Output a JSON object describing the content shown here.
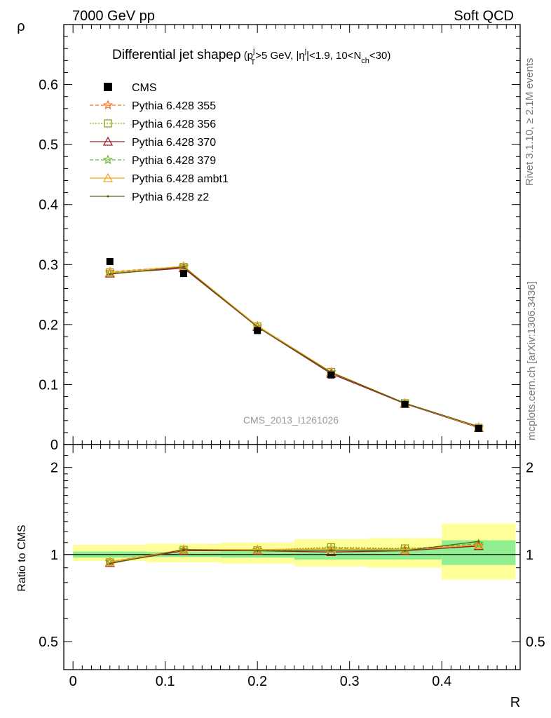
{
  "header": {
    "left": "7000 GeV pp",
    "right": "Soft QCD"
  },
  "side_labels": {
    "rivet": "Rivet 3.1.10, ≥ 2.1M events",
    "mcplots": "mcplots.cern.ch [arXiv:1306.3436]"
  },
  "chart_data": [
    {
      "type": "line",
      "panel": "main",
      "title": "Differential jet shapeρ (p_T^j>5 GeV, |η^j|<1.9, 10<N_ch<30)",
      "title_parts": {
        "main": "Differential jet shape",
        "rho": "ρ",
        "open": "(p",
        "pt_sup": "j",
        "pt_sub": "T",
        "mid": ">5 GeV, |η",
        "eta_sup": "j",
        "mid2": "|<1.9, 10<N",
        "nch_sub": "ch",
        "close": "<30)"
      },
      "ylabel": "ρ",
      "watermark": "CMS_2013_I1261026",
      "xlim": [
        -0.01,
        0.485
      ],
      "ylim": [
        0,
        0.7
      ],
      "yticks": [
        0,
        0.1,
        0.2,
        0.3,
        0.4,
        0.5,
        0.6
      ],
      "ytick_labels": [
        "0",
        "0.1",
        "0.2",
        "0.3",
        "0.4",
        "0.5",
        "0.6"
      ],
      "legend_position": "top-left",
      "x": [
        0.04,
        0.12,
        0.2,
        0.28,
        0.36,
        0.44
      ],
      "data": {
        "name": "CMS",
        "values": [
          0.305,
          0.285,
          0.19,
          0.116,
          0.067,
          0.027
        ]
      },
      "series": [
        {
          "name": "Pythia 6.428 355",
          "color": "#ff6d1f",
          "marker": "star",
          "dash": "5,3",
          "values": [
            0.288,
            0.297,
            0.197,
            0.12,
            0.069,
            0.028
          ]
        },
        {
          "name": "Pythia 6.428 356",
          "color": "#8ea21c",
          "marker": "square-open",
          "dash": "2,2",
          "values": [
            0.287,
            0.296,
            0.197,
            0.121,
            0.069,
            0.028
          ]
        },
        {
          "name": "Pythia 6.428 370",
          "color": "#9b1c28",
          "marker": "triangle-open",
          "dash": "",
          "values": [
            0.285,
            0.294,
            0.196,
            0.118,
            0.068,
            0.028
          ]
        },
        {
          "name": "Pythia 6.428 379",
          "color": "#6cb62b",
          "marker": "star",
          "dash": "5,3",
          "values": [
            0.286,
            0.296,
            0.197,
            0.121,
            0.069,
            0.029
          ]
        },
        {
          "name": "Pythia 6.428 ambt1",
          "color": "#f5a623",
          "marker": "triangle-open",
          "dash": "",
          "values": [
            0.287,
            0.297,
            0.198,
            0.121,
            0.069,
            0.029
          ]
        },
        {
          "name": "Pythia 6.428 z2",
          "color": "#5c6410",
          "marker": "dot",
          "dash": "",
          "values": [
            0.284,
            0.296,
            0.196,
            0.12,
            0.069,
            0.03
          ]
        }
      ]
    },
    {
      "type": "line",
      "panel": "ratio",
      "ylabel": "Ratio to CMS",
      "xlabel": "R",
      "yscale": "log",
      "ylim": [
        0.4,
        2.4
      ],
      "yticks": [
        0.5,
        1,
        2
      ],
      "ytick_labels": [
        "0.5",
        "1",
        "2"
      ],
      "xticks": [
        0,
        0.1,
        0.2,
        0.3,
        0.4
      ],
      "xtick_labels": [
        "0",
        "0.1",
        "0.2",
        "0.3",
        "0.4"
      ],
      "bins": [
        [
          0,
          0.08
        ],
        [
          0.08,
          0.16
        ],
        [
          0.16,
          0.24
        ],
        [
          0.24,
          0.32
        ],
        [
          0.32,
          0.4
        ],
        [
          0.4,
          0.48
        ]
      ],
      "band_stat": [
        [
          0.975,
          1.025
        ],
        [
          0.98,
          1.02
        ],
        [
          0.975,
          1.025
        ],
        [
          0.96,
          1.04
        ],
        [
          0.96,
          1.05
        ],
        [
          0.92,
          1.12
        ]
      ],
      "band_total": [
        [
          0.95,
          1.08
        ],
        [
          0.94,
          1.09
        ],
        [
          0.93,
          1.1
        ],
        [
          0.91,
          1.13
        ],
        [
          0.9,
          1.14
        ],
        [
          0.82,
          1.28
        ]
      ],
      "band_colors": {
        "stat": "#90ee90",
        "total": "#ffff99"
      },
      "series": [
        {
          "name": "Pythia 6.428 355",
          "values": [
            0.945,
            1.04,
            1.035,
            1.05,
            1.045,
            1.07
          ]
        },
        {
          "name": "Pythia 6.428 356",
          "values": [
            0.94,
            1.038,
            1.035,
            1.06,
            1.05,
            1.07
          ]
        },
        {
          "name": "Pythia 6.428 370",
          "values": [
            0.935,
            1.03,
            1.03,
            1.02,
            1.03,
            1.07
          ]
        },
        {
          "name": "Pythia 6.428 379",
          "values": [
            0.94,
            1.038,
            1.035,
            1.05,
            1.045,
            1.09
          ]
        },
        {
          "name": "Pythia 6.428 ambt1",
          "values": [
            0.942,
            1.04,
            1.04,
            1.045,
            1.04,
            1.08
          ]
        },
        {
          "name": "Pythia 6.428 z2",
          "values": [
            0.93,
            1.04,
            1.03,
            1.035,
            1.03,
            1.11
          ]
        }
      ]
    }
  ]
}
